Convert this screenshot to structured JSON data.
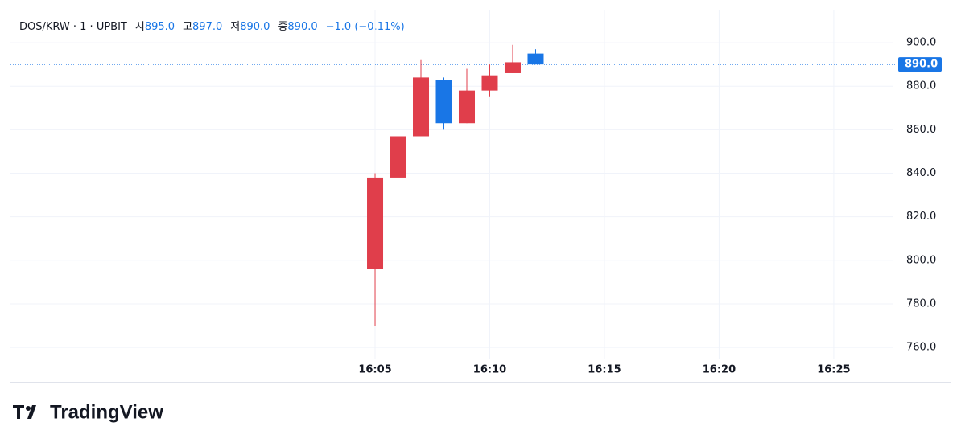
{
  "chart_data": {
    "type": "candlestick",
    "symbol": "DOS/KRW · 1 · UPBIT",
    "legend": [
      {
        "label": "시",
        "value": "895.0"
      },
      {
        "label": "고",
        "value": "897.0"
      },
      {
        "label": "저",
        "value": "890.0"
      },
      {
        "label": "종",
        "value": "890.0"
      }
    ],
    "change": "−1.0 (−0.11%)",
    "x": [
      "16:05",
      "16:06",
      "16:07",
      "16:08",
      "16:09",
      "16:10",
      "16:11",
      "16:12"
    ],
    "open": [
      796,
      838,
      857,
      883,
      863,
      878,
      886,
      895
    ],
    "high": [
      840,
      860,
      892,
      884,
      888,
      890,
      899,
      897
    ],
    "low": [
      770,
      834,
      857,
      860,
      863,
      875,
      886,
      890
    ],
    "close": [
      838,
      857,
      884,
      863,
      878,
      885,
      891,
      890
    ],
    "up_color": "#e03e4b",
    "down_color": "#1976e6",
    "xlim": [
      "15:49:04",
      "16:27:36"
    ],
    "xticks": [
      "16:05",
      "16:10",
      "16:15",
      "16:20",
      "16:25"
    ],
    "ylim": [
      754.5,
      914.8
    ],
    "yticks": [
      {
        "value": 760,
        "label": "760.0"
      },
      {
        "value": 780,
        "label": "780.0"
      },
      {
        "value": 800,
        "label": "800.0"
      },
      {
        "value": 820,
        "label": "820.0"
      },
      {
        "value": 840,
        "label": "840.0"
      },
      {
        "value": 860,
        "label": "860.0"
      },
      {
        "value": 880,
        "label": "880.0"
      },
      {
        "value": 900,
        "label": "900.0"
      }
    ],
    "last_price": {
      "value": 890,
      "label": "890.0"
    },
    "grid": true
  },
  "brand": "TradingView"
}
